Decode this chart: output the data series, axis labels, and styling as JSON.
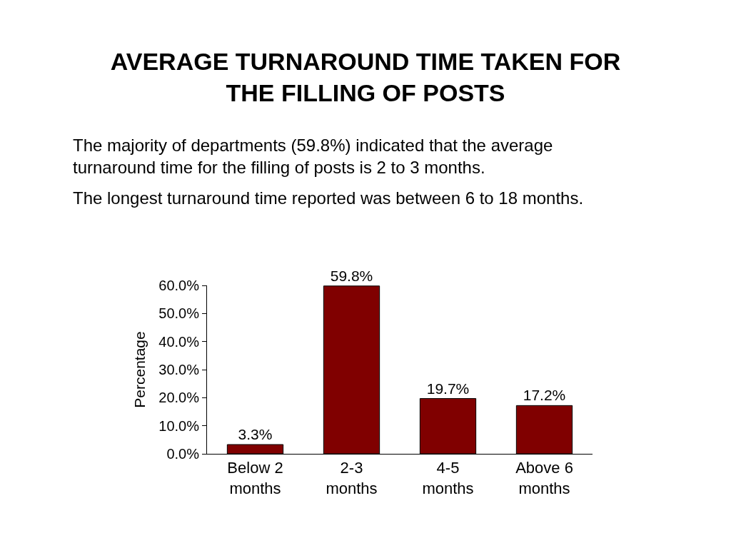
{
  "chart_data": {
    "type": "bar",
    "title": "AVERAGE TURNAROUND TIME TAKEN FOR THE FILLING OF POSTS",
    "annotations": [
      "The majority of departments (59.8%) indicated that the average turnaround time for the filling of posts is 2 to 3 months.",
      "The longest turnaround time reported was between 6 to 18 months."
    ],
    "ylabel": "Percentage",
    "categories": [
      "Below 2 months",
      "2-3 months",
      "4-5 months",
      "Above 6 months"
    ],
    "values": [
      3.3,
      59.8,
      19.7,
      17.2
    ],
    "value_labels": [
      "3.3%",
      "59.8%",
      "19.7%",
      "17.2%"
    ],
    "color": "#800000",
    "ylim": [
      0,
      60
    ],
    "yticks": [
      {
        "value": 0,
        "label": "0.0%"
      },
      {
        "value": 10,
        "label": "10.0%"
      },
      {
        "value": 20,
        "label": "20.0%"
      },
      {
        "value": 30,
        "label": "30.0%"
      },
      {
        "value": 40,
        "label": "40.0%"
      },
      {
        "value": 50,
        "label": "50.0%"
      },
      {
        "value": 60,
        "label": "60.0%"
      }
    ],
    "grid": false
  }
}
